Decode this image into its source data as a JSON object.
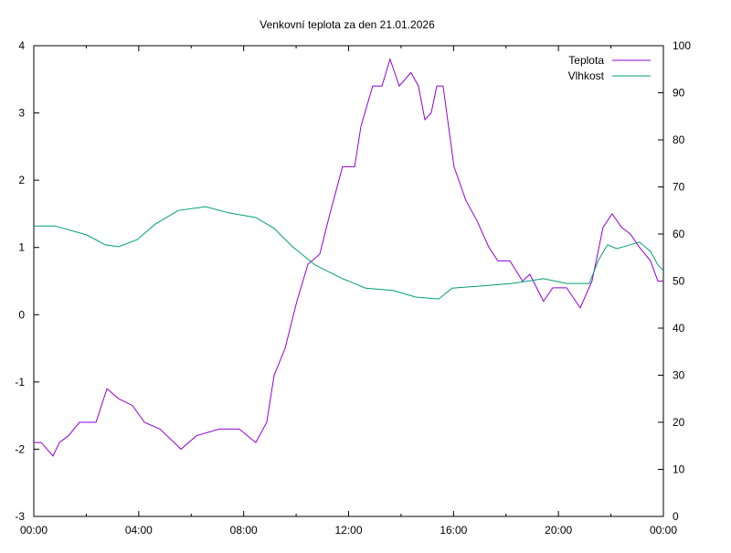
{
  "chart_data": {
    "type": "line",
    "title": "Venkovní teplota za den 21.01.2026",
    "xlabel": "",
    "ylabel": "",
    "y2label": "",
    "xlim": [
      0,
      24
    ],
    "ylim": [
      -3,
      4
    ],
    "y2lim": [
      0,
      100
    ],
    "x_tick_labels": [
      "00:00",
      "04:00",
      "08:00",
      "12:00",
      "16:00",
      "20:00",
      "00:00"
    ],
    "y_ticks": [
      -3,
      -2,
      -1,
      0,
      1,
      2,
      3,
      4
    ],
    "y2_ticks": [
      0,
      10,
      20,
      30,
      40,
      50,
      60,
      70,
      80,
      90,
      100
    ],
    "grid": false,
    "legend_position": "top-right",
    "series": [
      {
        "name": "Teplota",
        "axis": "y1",
        "color": "#9400d3",
        "x": [
          0,
          0.28,
          0.73,
          0.98,
          1.32,
          1.74,
          2.37,
          2.79,
          3.24,
          3.76,
          4.22,
          4.81,
          5.61,
          6.2,
          7.07,
          7.83,
          8.46,
          8.88,
          9.16,
          9.58,
          10.03,
          10.45,
          10.9,
          11.32,
          11.77,
          12.23,
          12.47,
          12.92,
          13.27,
          13.58,
          13.93,
          14.38,
          14.66,
          14.91,
          15.15,
          15.36,
          15.6,
          16.02,
          16.47,
          16.89,
          17.35,
          17.69,
          18.15,
          18.63,
          18.91,
          19.43,
          19.78,
          20.31,
          20.83,
          21.28,
          21.7,
          22.05,
          22.4,
          22.74,
          23.09,
          23.51,
          23.79,
          24
        ],
        "values": [
          -1.9,
          -1.9,
          -2.1,
          -1.9,
          -1.8,
          -1.6,
          -1.6,
          -1.1,
          -1.25,
          -1.35,
          -1.6,
          -1.7,
          -2.0,
          -1.8,
          -1.7,
          -1.7,
          -1.9,
          -1.6,
          -0.9,
          -0.5,
          0.2,
          0.75,
          0.9,
          1.55,
          2.2,
          2.2,
          2.8,
          3.4,
          3.4,
          3.8,
          3.4,
          3.6,
          3.4,
          2.9,
          3.0,
          3.4,
          3.4,
          2.2,
          1.7,
          1.4,
          1.0,
          0.8,
          0.8,
          0.5,
          0.6,
          0.2,
          0.4,
          0.4,
          0.1,
          0.5,
          1.3,
          1.5,
          1.3,
          1.2,
          1.0,
          0.8,
          0.5,
          0.5
        ]
      },
      {
        "name": "Vlhkost",
        "axis": "y2",
        "color": "#009e73",
        "x": [
          0,
          0.8,
          2.02,
          2.72,
          3.24,
          3.94,
          4.63,
          5.5,
          6.55,
          7.42,
          8.46,
          9.16,
          9.86,
          10.73,
          11.77,
          12.65,
          13.69,
          14.56,
          15.43,
          15.95,
          17.17,
          18.22,
          19.43,
          20.31,
          21.18,
          21.52,
          21.87,
          22.22,
          22.74,
          23.09,
          23.51,
          23.79,
          24
        ],
        "values": [
          61.7,
          61.7,
          59.8,
          57.7,
          57.3,
          58.8,
          62.1,
          65,
          65.8,
          64.5,
          63.5,
          61.2,
          57.3,
          53.4,
          50.5,
          48.5,
          48,
          46.6,
          46.2,
          48.5,
          49,
          49.5,
          50.5,
          49.5,
          49.5,
          54.4,
          57.7,
          56.9,
          57.7,
          58.3,
          56.3,
          53.4,
          52.2
        ]
      }
    ]
  }
}
